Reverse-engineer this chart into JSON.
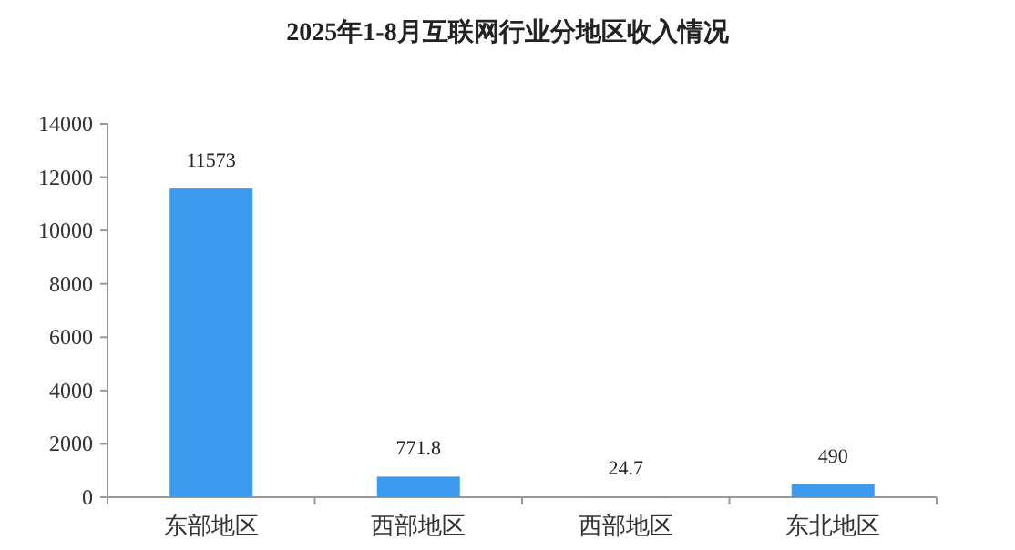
{
  "chart_data": {
    "type": "bar",
    "title": "2025年1-8月互联网行业分地区收入情况",
    "categories": [
      "东部地区",
      "西部地区",
      "西部地区",
      "东北地区"
    ],
    "values": [
      11573,
      771.8,
      24.7,
      490
    ],
    "color": "#3d9bef",
    "ylim": [
      0,
      14000
    ],
    "yticks": [
      0,
      2000,
      4000,
      6000,
      8000,
      10000,
      12000,
      14000
    ],
    "data_labels": true
  }
}
